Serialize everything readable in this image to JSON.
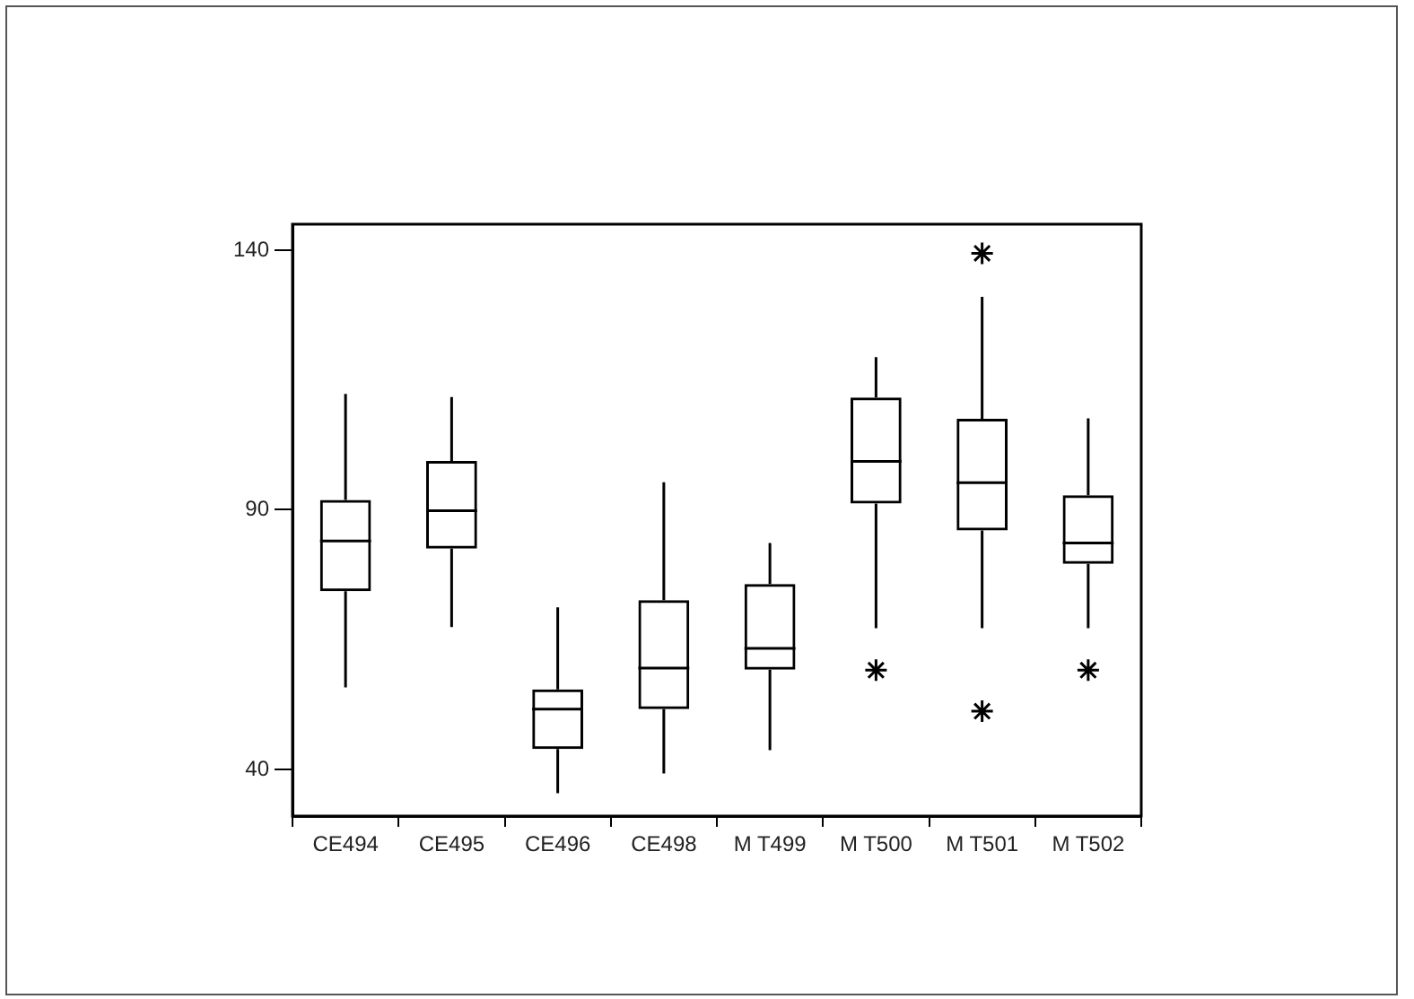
{
  "chart_data": {
    "type": "box",
    "categories": [
      "CE494",
      "CE495",
      "CE496",
      "CE498",
      "M T499",
      "M T500",
      "M T501",
      "M T502"
    ],
    "boxes": [
      {
        "low": 55.8,
        "q1": 74.3,
        "median": 84.0,
        "q3": 91.9,
        "high": 112.3
      },
      {
        "low": 67.4,
        "q1": 82.5,
        "median": 89.8,
        "q3": 99.4,
        "high": 111.7
      },
      {
        "low": 35.4,
        "q1": 43.9,
        "median": 51.6,
        "q3": 55.4,
        "high": 71.2
      },
      {
        "low": 39.2,
        "q1": 51.6,
        "median": 59.5,
        "q3": 72.6,
        "high": 95.3
      },
      {
        "low": 43.7,
        "q1": 59.2,
        "median": 63.3,
        "q3": 75.7,
        "high": 83.6
      },
      {
        "low": 67.2,
        "q1": 91.2,
        "median": 99.3,
        "q3": 111.6,
        "high": 119.4,
        "outliers": [
          59.1
        ]
      },
      {
        "low": 67.2,
        "q1": 86.0,
        "median": 95.2,
        "q3": 107.5,
        "high": 131.0,
        "outliers": [
          139.4,
          51.2
        ]
      },
      {
        "low": 67.2,
        "q1": 79.6,
        "median": 83.6,
        "q3": 92.8,
        "high": 107.6,
        "outliers": [
          59.1
        ]
      }
    ],
    "color": "#000000",
    "ylim": [
      31,
      145
    ],
    "yticks": [
      40,
      90,
      140
    ],
    "grid": false,
    "legend": false,
    "marker": "star"
  }
}
